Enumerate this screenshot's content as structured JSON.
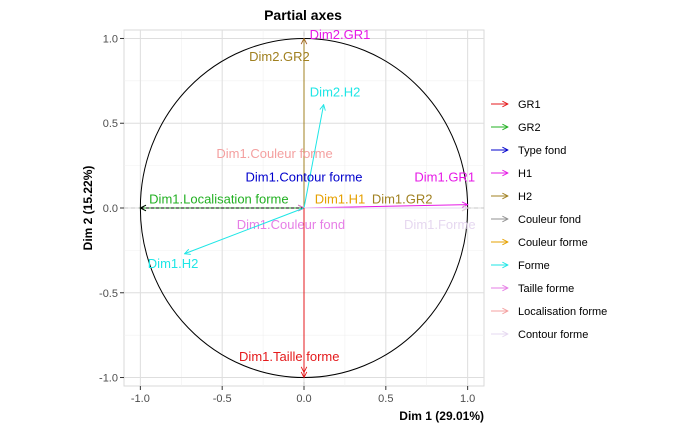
{
  "chart_data": {
    "type": "scatter",
    "title": "Partial axes",
    "xlabel": "Dim 1 (29.01%)",
    "ylabel": "Dim 2 (15.22%)",
    "xlim": [
      -1.1,
      1.1
    ],
    "ylim": [
      -1.05,
      1.05
    ],
    "xticks": [
      "-1.0",
      "-0.5",
      "0.0",
      "0.5",
      "1.0"
    ],
    "yticks": [
      "-1.0",
      "-0.5",
      "0.0",
      "0.5",
      "1.0"
    ],
    "grid": true,
    "legend_position": "right",
    "legend": [
      {
        "name": "GR1",
        "color": "#e41a1c"
      },
      {
        "name": "GR2",
        "color": "#22b022"
      },
      {
        "name": "Type fond",
        "color": "#0000cc"
      },
      {
        "name": "H1",
        "color": "#e619e6"
      },
      {
        "name": "H2",
        "color": "#a08020"
      },
      {
        "name": "Couleur fond",
        "color": "#909090"
      },
      {
        "name": "Couleur forme",
        "color": "#e6a000"
      },
      {
        "name": "Forme",
        "color": "#1ee6e6"
      },
      {
        "name": "Taille forme",
        "color": "#e67ee6"
      },
      {
        "name": "Localisation forme",
        "color": "#f4a0a0"
      },
      {
        "name": "Contour forme",
        "color": "#e6d8f0"
      }
    ],
    "arrows": [
      {
        "label": "Dim2.GR1",
        "x": 0.0,
        "y": 1.0,
        "color": "#e619e6",
        "dashed": false,
        "lx": 0.22,
        "ly": 1.02
      },
      {
        "label": "Dim2.GR2",
        "x": 0.0,
        "y": 1.0,
        "color": "#a08020",
        "dashed": false,
        "lx": -0.15,
        "ly": 0.89
      },
      {
        "label": "Dim2.H2",
        "x": 0.12,
        "y": 0.61,
        "color": "#1ee6e6",
        "dashed": false,
        "lx": 0.19,
        "ly": 0.68
      },
      {
        "label": "Dim1.Couleur forme",
        "x": 0.0,
        "y": 0.0,
        "color": "#f4a0a0",
        "dashed": false,
        "lx": -0.18,
        "ly": 0.32
      },
      {
        "label": "Dim1.Contour forme",
        "x": 0.0,
        "y": 0.0,
        "color": "#0000cc",
        "dashed": false,
        "lx": 0.0,
        "ly": 0.18
      },
      {
        "label": "Dim1.GR1",
        "x": 1.0,
        "y": 0.02,
        "color": "#e619e6",
        "dashed": false,
        "lx": 0.86,
        "ly": 0.18
      },
      {
        "label": "Dim1.GR2",
        "x": 1.0,
        "y": 0.0,
        "color": "#a08020",
        "dashed": false,
        "lx": 0.6,
        "ly": 0.05
      },
      {
        "label": "Dim1.H1",
        "x": 0.0,
        "y": 0.0,
        "color": "#e6a000",
        "dashed": false,
        "lx": 0.22,
        "ly": 0.05
      },
      {
        "label": "Dim1.Localisation forme",
        "x": -1.0,
        "y": 0.0,
        "color": "#000000",
        "dashed": true,
        "lx": -0.52,
        "ly": 0.05
      },
      {
        "label": "Dim1.Couleur fond",
        "x": 0.0,
        "y": 0.0,
        "color": "#e67ee6",
        "dashed": false,
        "lx": -0.08,
        "ly": -0.1
      },
      {
        "label": "Dim1.Forme",
        "x": 1.0,
        "y": 0.0,
        "color": "#e6d8f0",
        "dashed": false,
        "lx": 0.83,
        "ly": -0.1
      },
      {
        "label": "Dim1.H2",
        "x": -0.73,
        "y": -0.27,
        "color": "#1ee6e6",
        "dashed": false,
        "lx": -0.8,
        "ly": -0.33
      },
      {
        "label": "Dim1.Taille forme",
        "x": 0.0,
        "y": -0.97,
        "color": "#e41a1c",
        "dashed": true,
        "lx": -0.09,
        "ly": -0.88
      }
    ],
    "extra_segments": [
      {
        "x": -1.0,
        "y": 0.0,
        "color": "#22b022"
      },
      {
        "x": 0.0,
        "y": -1.0,
        "color": "#e41a1c"
      },
      {
        "x": 0.0,
        "y": 0.0,
        "color": "#909090"
      }
    ]
  }
}
